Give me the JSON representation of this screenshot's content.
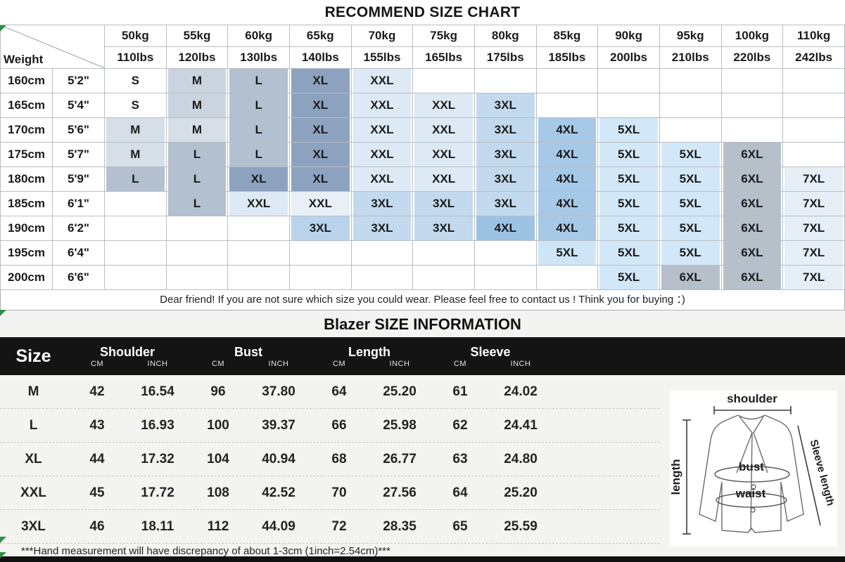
{
  "recommend_chart": {
    "title": "RECOMMEND SIZE CHART",
    "corner_label": "Weight",
    "weight_columns": [
      {
        "kg": "50kg",
        "lbs": "110lbs"
      },
      {
        "kg": "55kg",
        "lbs": "120lbs"
      },
      {
        "kg": "60kg",
        "lbs": "130lbs"
      },
      {
        "kg": "65kg",
        "lbs": "140lbs"
      },
      {
        "kg": "70kg",
        "lbs": "155lbs"
      },
      {
        "kg": "75kg",
        "lbs": "165lbs"
      },
      {
        "kg": "80kg",
        "lbs": "175lbs"
      },
      {
        "kg": "85kg",
        "lbs": "185lbs"
      },
      {
        "kg": "90kg",
        "lbs": "200lbs"
      },
      {
        "kg": "95kg",
        "lbs": "210lbs"
      },
      {
        "kg": "100kg",
        "lbs": "220lbs"
      },
      {
        "kg": "110kg",
        "lbs": "242lbs"
      }
    ],
    "rows": [
      {
        "cm": "160cm",
        "ft": "5'2\"",
        "cells": [
          [
            "S",
            "#ffffff"
          ],
          [
            "M",
            "#cad4df"
          ],
          [
            "L",
            "#b2c0cf"
          ],
          [
            "XL",
            "#8ca2bf"
          ],
          [
            "XXL",
            "#dde9f4"
          ],
          null,
          null,
          null,
          null,
          null,
          null,
          null
        ]
      },
      {
        "cm": "165cm",
        "ft": "5'4\"",
        "cells": [
          [
            "S",
            "#ffffff"
          ],
          [
            "M",
            "#cad4df"
          ],
          [
            "L",
            "#b2c0cf"
          ],
          [
            "XL",
            "#8ca2bf"
          ],
          [
            "XXL",
            "#dde9f4"
          ],
          [
            "XXL",
            "#dde9f4"
          ],
          [
            "3XL",
            "#c2d9ee"
          ],
          null,
          null,
          null,
          null,
          null
        ]
      },
      {
        "cm": "170cm",
        "ft": "5'6\"",
        "cells": [
          [
            "M",
            "#d6dee7"
          ],
          [
            "M",
            "#d6dee7"
          ],
          [
            "L",
            "#b2c0cf"
          ],
          [
            "XL",
            "#8ca2bf"
          ],
          [
            "XXL",
            "#dde9f4"
          ],
          [
            "XXL",
            "#dde9f4"
          ],
          [
            "3XL",
            "#c2d9ee"
          ],
          [
            "4XL",
            "#a6c9e8"
          ],
          [
            "5XL",
            "#d2e8f8"
          ],
          null,
          null,
          null
        ]
      },
      {
        "cm": "175cm",
        "ft": "5'7\"",
        "cells": [
          [
            "M",
            "#d6dee7"
          ],
          [
            "L",
            "#b2c0cf"
          ],
          [
            "L",
            "#b2c0cf"
          ],
          [
            "XL",
            "#8ca2bf"
          ],
          [
            "XXL",
            "#dde9f4"
          ],
          [
            "XXL",
            "#dde9f4"
          ],
          [
            "3XL",
            "#c2d9ee"
          ],
          [
            "4XL",
            "#a6c9e8"
          ],
          [
            "5XL",
            "#d2e8f8"
          ],
          [
            "5XL",
            "#d2e8f8"
          ],
          [
            "6XL",
            "#b6c0ca"
          ],
          null
        ]
      },
      {
        "cm": "180cm",
        "ft": "5'9\"",
        "cells": [
          [
            "L",
            "#b2c0cf"
          ],
          [
            "L",
            "#b2c0cf"
          ],
          [
            "XL",
            "#8ca2bf"
          ],
          [
            "XL",
            "#8ca2bf"
          ],
          [
            "XXL",
            "#dde9f4"
          ],
          [
            "XXL",
            "#dde9f4"
          ],
          [
            "3XL",
            "#c2d9ee"
          ],
          [
            "4XL",
            "#a6c9e8"
          ],
          [
            "5XL",
            "#d2e8f8"
          ],
          [
            "5XL",
            "#d2e8f8"
          ],
          [
            "6XL",
            "#b6c0ca"
          ],
          [
            "7XL",
            "#e6eff8"
          ]
        ]
      },
      {
        "cm": "185cm",
        "ft": "6'1\"",
        "cells": [
          null,
          [
            "L",
            "#b2c0cf"
          ],
          [
            "XXL",
            "#dde9f4"
          ],
          [
            "XXL",
            "#e8eff6"
          ],
          [
            "3XL",
            "#c2d9ee"
          ],
          [
            "3XL",
            "#c2d9ee"
          ],
          [
            "3XL",
            "#c2d9ee"
          ],
          [
            "4XL",
            "#a6c9e8"
          ],
          [
            "5XL",
            "#d2e8f8"
          ],
          [
            "5XL",
            "#d2e8f8"
          ],
          [
            "6XL",
            "#b6c0ca"
          ],
          [
            "7XL",
            "#e6eff8"
          ]
        ]
      },
      {
        "cm": "190cm",
        "ft": "6'2\"",
        "cells": [
          null,
          null,
          null,
          [
            "3XL",
            "#b9d3ec"
          ],
          [
            "3XL",
            "#c2d9ee"
          ],
          [
            "3XL",
            "#c2d9ee"
          ],
          [
            "4XL",
            "#9cc2e4"
          ],
          [
            "4XL",
            "#a6c9e8"
          ],
          [
            "5XL",
            "#d2e8f8"
          ],
          [
            "5XL",
            "#d2e8f8"
          ],
          [
            "6XL",
            "#b6c0ca"
          ],
          [
            "7XL",
            "#e6eff8"
          ]
        ]
      },
      {
        "cm": "195cm",
        "ft": "6'4\"",
        "cells": [
          null,
          null,
          null,
          null,
          null,
          null,
          null,
          [
            "5XL",
            "#cde5f7"
          ],
          [
            "5XL",
            "#d2e8f8"
          ],
          [
            "5XL",
            "#d2e8f8"
          ],
          [
            "6XL",
            "#b6c0ca"
          ],
          [
            "7XL",
            "#e6eff8"
          ]
        ]
      },
      {
        "cm": "200cm",
        "ft": "6'6\"",
        "cells": [
          null,
          null,
          null,
          null,
          null,
          null,
          null,
          null,
          [
            "5XL",
            "#d2e8f8"
          ],
          [
            "6XL",
            "#b6c0ca"
          ],
          [
            "6XL",
            "#b6c0ca"
          ],
          [
            "7XL",
            "#e6eff8"
          ]
        ]
      }
    ],
    "note": "Dear friend! If you are not sure which size you could wear. Please feel free to contact us ! Think you for buying ：)"
  },
  "size_info": {
    "title": "Blazer SIZE INFORMATION",
    "size_header": "Size",
    "groups": [
      {
        "label": "Shoulder",
        "units": [
          "CM",
          "INCH"
        ]
      },
      {
        "label": "Bust",
        "units": [
          "CM",
          "INCH"
        ]
      },
      {
        "label": "Length",
        "units": [
          "CM",
          "INCH"
        ]
      },
      {
        "label": "Sleeve",
        "units": [
          "CM",
          "INCH"
        ]
      }
    ],
    "rows": [
      {
        "size": "M",
        "values": [
          "42",
          "16.54",
          "96",
          "37.80",
          "64",
          "25.20",
          "61",
          "24.02"
        ]
      },
      {
        "size": "L",
        "values": [
          "43",
          "16.93",
          "100",
          "39.37",
          "66",
          "25.98",
          "62",
          "24.41"
        ]
      },
      {
        "size": "XL",
        "values": [
          "44",
          "17.32",
          "104",
          "40.94",
          "68",
          "26.77",
          "63",
          "24.80"
        ]
      },
      {
        "size": "XXL",
        "values": [
          "45",
          "17.72",
          "108",
          "42.52",
          "70",
          "27.56",
          "64",
          "25.20"
        ]
      },
      {
        "size": "3XL",
        "values": [
          "46",
          "18.11",
          "112",
          "44.09",
          "72",
          "28.35",
          "65",
          "25.59"
        ]
      }
    ],
    "footnote": "***Hand measurement will have discrepancy of about 1-3cm (1inch=2.54cm)***"
  },
  "diagram": {
    "shoulder_label": "shoulder",
    "length_label": "length",
    "sleeve_label": "Sleeve length",
    "bust_label": "bust",
    "waist_label": "waist"
  },
  "palette": {
    "header_bar": "#141414",
    "bottom_bar": "#101010",
    "marker_green": "#2f8f46",
    "lower_bg": "#f3f4f2",
    "grid_border": "#b9bec4"
  }
}
